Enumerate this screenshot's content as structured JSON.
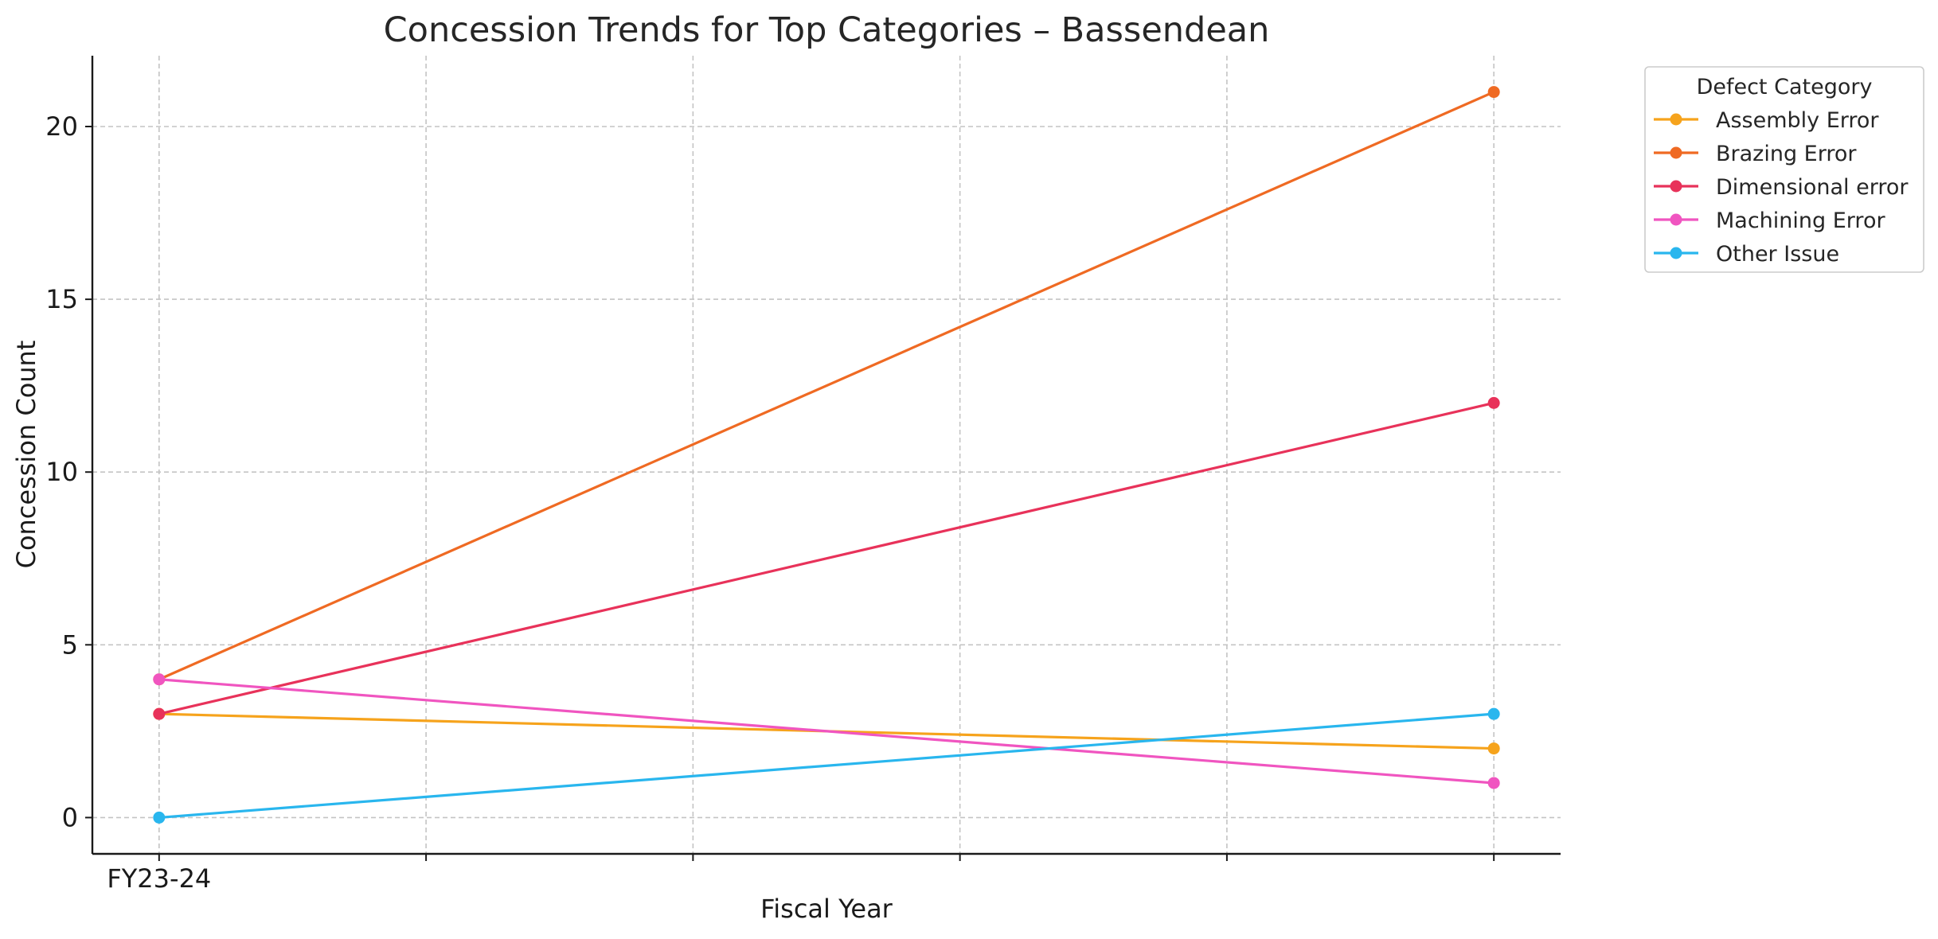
{
  "chart_data": {
    "type": "line",
    "title": "Concession Trends for Top Categories – Bassendean",
    "xlabel": "Fiscal Year",
    "ylabel": "Concession Count",
    "x_tick_labels": [
      "FY23-24",
      "",
      "",
      "",
      "",
      ""
    ],
    "x": [
      0,
      5
    ],
    "xlim": [
      -0.25,
      5.25
    ],
    "ylim": [
      -1.05,
      22.05
    ],
    "yticks": [
      0,
      5,
      10,
      15,
      20
    ],
    "grid": true,
    "legend": {
      "title": "Defect Category",
      "placement": "outside-top-right"
    },
    "series": [
      {
        "name": "Assembly Error",
        "color": "#f6a31c",
        "values": [
          3,
          2
        ]
      },
      {
        "name": "Brazing Error",
        "color": "#ef6a23",
        "values": [
          4,
          21
        ]
      },
      {
        "name": "Dimensional error",
        "color": "#e8325a",
        "values": [
          3,
          12
        ]
      },
      {
        "name": "Machining Error",
        "color": "#f055c0",
        "values": [
          4,
          1
        ]
      },
      {
        "name": "Other Issue",
        "color": "#29b6ee",
        "values": [
          0,
          3
        ]
      }
    ]
  }
}
